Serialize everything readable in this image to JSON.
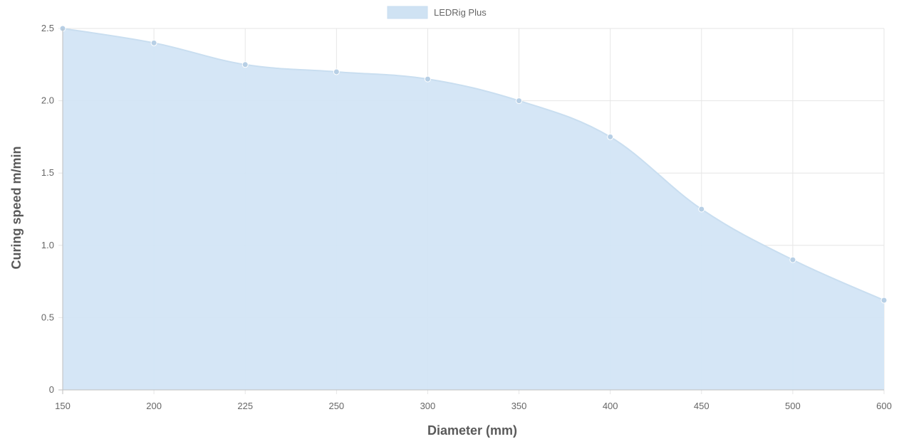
{
  "chart_data": {
    "type": "area",
    "title": "",
    "xlabel": "Diameter (mm)",
    "ylabel": "Curing speed m/min",
    "categories": [
      "150",
      "200",
      "225",
      "250",
      "300",
      "350",
      "400",
      "450",
      "500",
      "600"
    ],
    "series": [
      {
        "name": "LEDRig Plus",
        "values": [
          2.5,
          2.4,
          2.25,
          2.2,
          2.15,
          2.0,
          1.75,
          1.25,
          0.9,
          0.62
        ]
      }
    ],
    "ylim": [
      0,
      2.5
    ],
    "yticks": [
      "0",
      "0.5",
      "1.0",
      "1.5",
      "2.0",
      "2.5"
    ],
    "yticks_values": [
      0,
      0.5,
      1.0,
      1.5,
      2.0,
      2.5
    ],
    "grid": true,
    "legend": "top-center",
    "colors": {
      "fill": "#d3e5f5",
      "legend_swatch": "#cfe2f3",
      "line": "#c9def0",
      "point": "#b7cfe5",
      "grid": "#e6e6e6",
      "axis": "#bfbfbf"
    }
  }
}
